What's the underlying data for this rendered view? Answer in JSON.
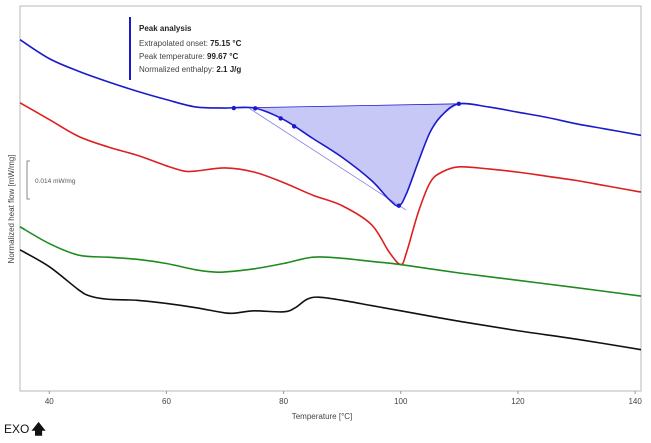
{
  "chart_data": {
    "type": "line",
    "xlabel": "Temperature [°C]",
    "ylabel": "Normalized heat flow [mW/mg]",
    "xlim": [
      35,
      141
    ],
    "xticks": [
      40,
      60,
      80,
      100,
      120,
      140
    ],
    "scale_bar_label": "0.014 mW/mg",
    "exo_label": "EXO",
    "colors": {
      "blue": "#1a1acc",
      "red": "#dd1f1f",
      "green": "#1f8a1f",
      "black": "#111111",
      "peak_fill": "#9a9af0"
    },
    "peak_analysis": {
      "title": "Peak analysis",
      "rows": [
        {
          "label": "Extrapolated onset: ",
          "value": "75.15 °C"
        },
        {
          "label": "Peak temperature: ",
          "value": "99.67 °C"
        },
        {
          "label": "Normalized enthalpy: ",
          "value": "2.1 J/g"
        }
      ],
      "baseline_start_T": 71.5,
      "baseline_end_T": 109.9,
      "onset_T": 75.15,
      "peak_T": 99.67,
      "marker_T": [
        71.5,
        75.15,
        79.5,
        81.8,
        99.67,
        109.9
      ]
    },
    "signal_units": "relative heat flow (arbitrary vertical offset)",
    "series": [
      {
        "color": "blue",
        "x": [
          35,
          40,
          45,
          50,
          55,
          60,
          65,
          70,
          75,
          80,
          85,
          90,
          95,
          98,
          99.67,
          101,
          103,
          105,
          107,
          109.9,
          115,
          120,
          125,
          130,
          135,
          141
        ],
        "y": [
          0.0,
          -0.009,
          -0.015,
          -0.02,
          -0.0245,
          -0.0285,
          -0.032,
          -0.0325,
          -0.0325,
          -0.038,
          -0.047,
          -0.056,
          -0.067,
          -0.076,
          -0.079,
          -0.073,
          -0.058,
          -0.044,
          -0.036,
          -0.0305,
          -0.032,
          -0.0345,
          -0.037,
          -0.04,
          -0.0425,
          -0.0455
        ]
      },
      {
        "color": "red",
        "x": [
          35,
          40,
          45,
          50,
          55,
          60,
          63,
          65,
          70,
          75,
          80,
          85,
          90,
          95,
          98,
          100,
          101,
          103,
          105,
          107,
          110,
          115,
          120,
          125,
          130,
          135,
          141
        ],
        "y": [
          -0.03,
          -0.038,
          -0.046,
          -0.051,
          -0.055,
          -0.06,
          -0.0625,
          -0.0625,
          -0.061,
          -0.063,
          -0.068,
          -0.074,
          -0.079,
          -0.088,
          -0.101,
          -0.107,
          -0.101,
          -0.082,
          -0.068,
          -0.063,
          -0.0605,
          -0.0615,
          -0.063,
          -0.065,
          -0.067,
          -0.0695,
          -0.0725
        ]
      },
      {
        "color": "green",
        "x": [
          35,
          40,
          45,
          50,
          55,
          60,
          65,
          68,
          70,
          75,
          80,
          85,
          90,
          95,
          100,
          110,
          120,
          130,
          141
        ],
        "y": [
          -0.089,
          -0.097,
          -0.1025,
          -0.1035,
          -0.1045,
          -0.1065,
          -0.1095,
          -0.1105,
          -0.1105,
          -0.109,
          -0.1065,
          -0.1035,
          -0.104,
          -0.1055,
          -0.107,
          -0.111,
          -0.1145,
          -0.118,
          -0.122
        ]
      },
      {
        "color": "black",
        "x": [
          35,
          40,
          45,
          47,
          50,
          55,
          60,
          65,
          70,
          72,
          75,
          80,
          82,
          84,
          86,
          90,
          95,
          100,
          110,
          120,
          130,
          141
        ],
        "y": [
          -0.1,
          -0.108,
          -0.119,
          -0.122,
          -0.1235,
          -0.124,
          -0.1255,
          -0.1275,
          -0.13,
          -0.13,
          -0.129,
          -0.1295,
          -0.1275,
          -0.1235,
          -0.1225,
          -0.124,
          -0.1265,
          -0.129,
          -0.134,
          -0.1385,
          -0.1425,
          -0.1475
        ]
      }
    ]
  }
}
